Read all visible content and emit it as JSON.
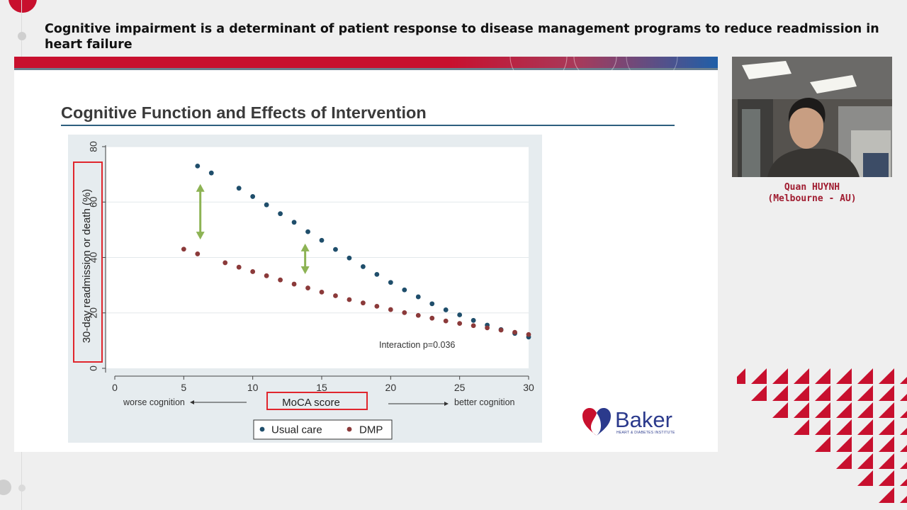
{
  "session": {
    "title": "Cognitive impairment is a determinant of patient response to disease management programs to reduce readmission in heart failure"
  },
  "slide": {
    "heading": "Cognitive Function and Effects of Intervention",
    "logo": {
      "word": "Baker",
      "subtitle": "HEART & DIABETES INSTITUTE"
    }
  },
  "speaker": {
    "name": "Quan HUYNH",
    "location": "(Melbourne - AU)"
  },
  "colors": {
    "brand_red": "#c8102e",
    "usual_care": "#1f4e6b",
    "dmp": "#8b3a3a",
    "arrow": "#8db354",
    "highlight_box": "#e0262d"
  },
  "chart_data": {
    "type": "scatter",
    "xlabel": "MoCA score",
    "ylabel": "30-day readmission or death (%)",
    "xlim": [
      0,
      30
    ],
    "ylim": [
      0,
      80
    ],
    "x_ticks": [
      0,
      5,
      10,
      15,
      20,
      25,
      30
    ],
    "y_ticks": [
      0,
      20,
      40,
      60,
      80
    ],
    "grid": "horizontal",
    "legend_position": "bottom",
    "annotation": "Interaction p=0.036",
    "x_axis_notes": {
      "left": "worse cognition",
      "right": "better cognition"
    },
    "series": [
      {
        "name": "Usual care",
        "color": "#1f4e6b",
        "x": [
          6,
          7,
          9,
          10,
          11,
          12,
          13,
          14,
          15,
          16,
          17,
          18,
          19,
          20,
          21,
          22,
          23,
          24,
          25,
          26,
          27,
          28,
          29,
          30
        ],
        "y": [
          73,
          70.5,
          65,
          62,
          59,
          55.8,
          52.7,
          49.3,
          46.2,
          42.9,
          39.8,
          36.7,
          33.9,
          31,
          28.3,
          25.8,
          23.3,
          21.1,
          19.3,
          17.3,
          15.6,
          14,
          12.6,
          11.3
        ]
      },
      {
        "name": "DMP",
        "color": "#8b3a3a",
        "x": [
          5,
          6,
          8,
          9,
          10,
          11,
          12,
          13,
          14,
          15,
          16,
          17,
          18,
          19,
          20,
          21,
          22,
          23,
          24,
          25,
          26,
          27,
          28,
          29,
          30
        ],
        "y": [
          43,
          41.3,
          38.1,
          36.5,
          34.9,
          33.4,
          31.9,
          30.4,
          29,
          27.5,
          26.2,
          24.8,
          23.6,
          22.4,
          21.2,
          20.1,
          19.1,
          18.1,
          17.1,
          16.2,
          15.4,
          14.6,
          13.8,
          13,
          12.2
        ]
      }
    ],
    "gap_arrows": [
      {
        "x": 6.2,
        "y_top": 66,
        "y_bottom": 47
      },
      {
        "x": 13.8,
        "y_top": 44.5,
        "y_bottom": 34.5
      }
    ]
  }
}
